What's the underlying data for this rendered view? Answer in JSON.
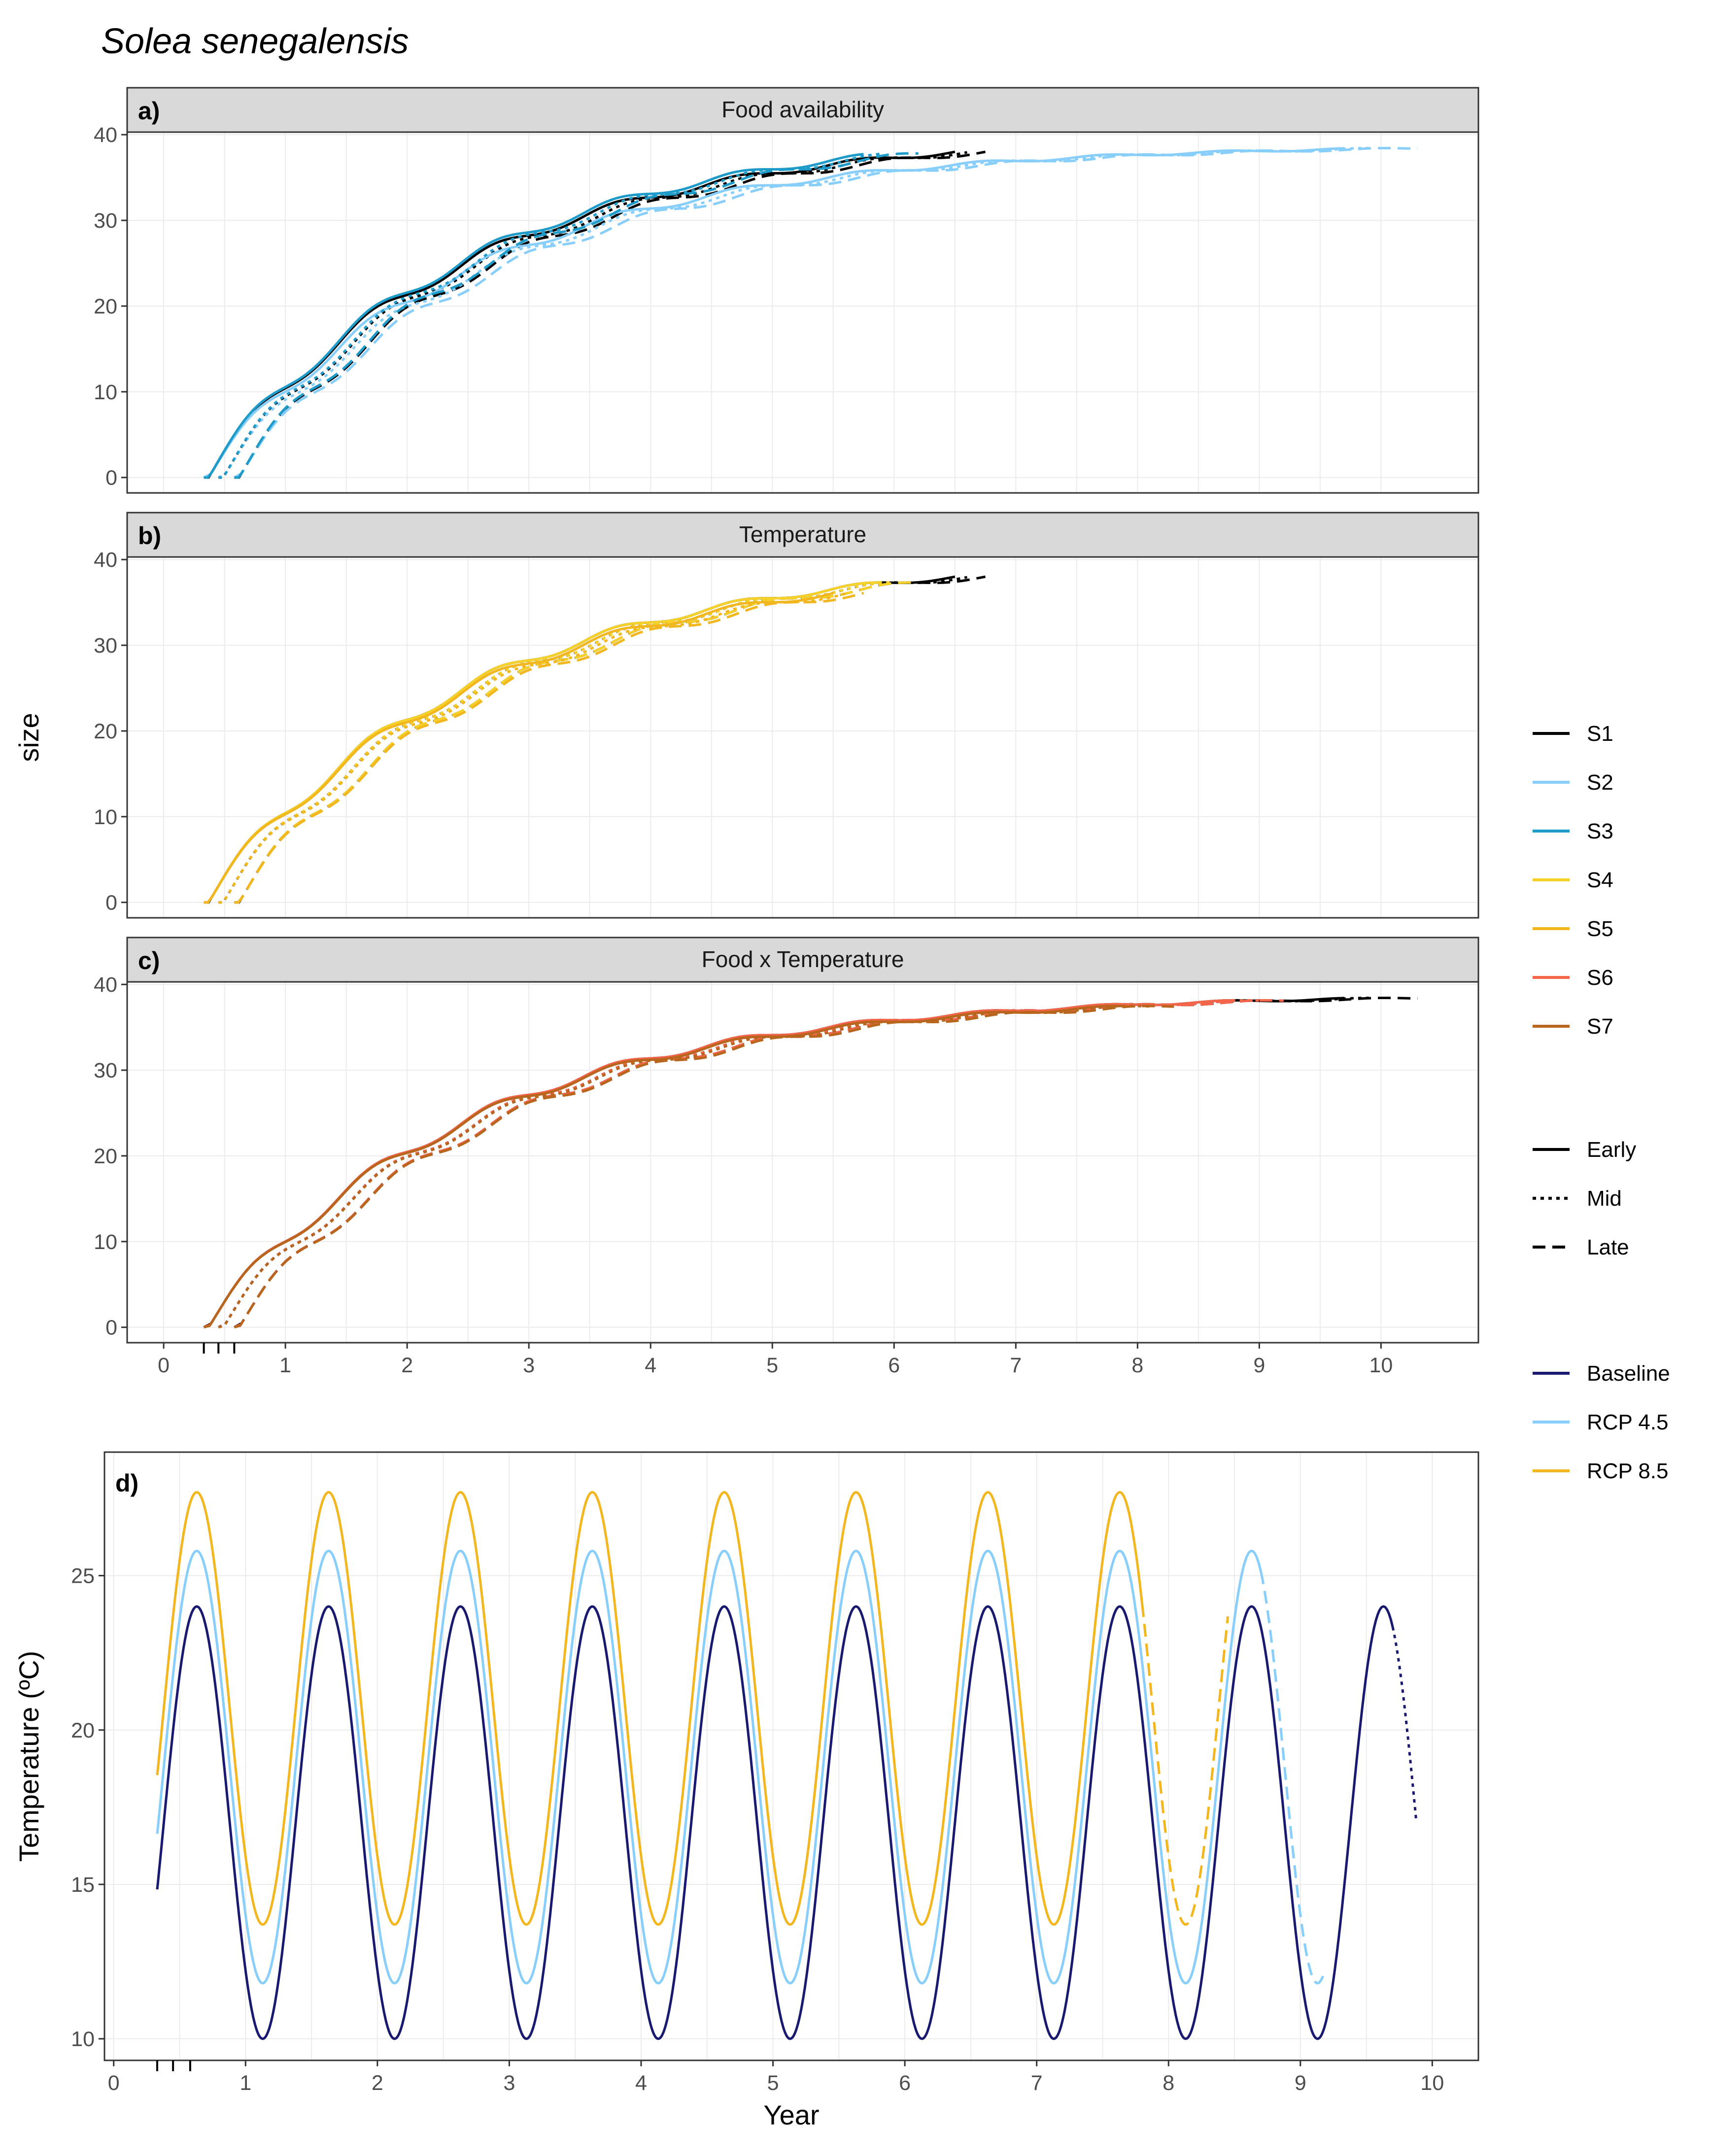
{
  "figure": {
    "title": "Solea senegalensis",
    "shared_y_label": "size",
    "x_axis_label": "Year"
  },
  "legend": {
    "scenarios": [
      {
        "label": "S1",
        "color": "#000000"
      },
      {
        "label": "S2",
        "color": "#87cefa"
      },
      {
        "label": "S3",
        "color": "#1f9bc9"
      },
      {
        "label": "S4",
        "color": "#f5d12a"
      },
      {
        "label": "S5",
        "color": "#f2b61f"
      },
      {
        "label": "S6",
        "color": "#f4654a"
      },
      {
        "label": "S7",
        "color": "#b8651e"
      }
    ],
    "periods": [
      {
        "label": "Early",
        "dash": "solid"
      },
      {
        "label": "Mid",
        "dash": "dotted"
      },
      {
        "label": "Late",
        "dash": "dashed"
      }
    ],
    "climate": [
      {
        "label": "Baseline",
        "color": "#191970"
      },
      {
        "label": "RCP 4.5",
        "color": "#87cefa"
      },
      {
        "label": "RCP 8.5",
        "color": "#f2b61f"
      }
    ]
  },
  "chart_data": [
    {
      "panel": "a)",
      "strip": "Food availability",
      "type": "line",
      "xlim": [
        -0.3,
        10.8
      ],
      "ylim": [
        -1.8,
        40.3
      ],
      "xticks": [
        0,
        1,
        2,
        3,
        4,
        5,
        6,
        7,
        8,
        9,
        10
      ],
      "yticks": [
        0,
        10,
        20,
        30,
        40
      ],
      "ylabel": "size",
      "series": [
        {
          "scenario": "S1",
          "period": "Early",
          "start": 0.33,
          "end": 6.5,
          "final": 38.0
        },
        {
          "scenario": "S1",
          "period": "Mid",
          "start": 0.45,
          "end": 6.6,
          "final": 38.0
        },
        {
          "scenario": "S1",
          "period": "Late",
          "start": 0.58,
          "end": 6.75,
          "final": 38.0
        },
        {
          "scenario": "S2",
          "period": "Early",
          "start": 0.33,
          "end": 9.7,
          "final": 36.5
        },
        {
          "scenario": "S2",
          "period": "Mid",
          "start": 0.45,
          "end": 9.9,
          "final": 36.5
        },
        {
          "scenario": "S2",
          "period": "Late",
          "start": 0.58,
          "end": 10.3,
          "final": 36.5
        },
        {
          "scenario": "S3",
          "period": "Early",
          "start": 0.33,
          "end": 5.75,
          "final": 38.5
        },
        {
          "scenario": "S3",
          "period": "Mid",
          "start": 0.45,
          "end": 5.9,
          "final": 38.5
        },
        {
          "scenario": "S3",
          "period": "Late",
          "start": 0.58,
          "end": 6.2,
          "final": 38.5
        }
      ]
    },
    {
      "panel": "b)",
      "strip": "Temperature",
      "type": "line",
      "xlim": [
        -0.3,
        10.8
      ],
      "ylim": [
        -1.8,
        40.3
      ],
      "xticks": [
        0,
        1,
        2,
        3,
        4,
        5,
        6,
        7,
        8,
        9,
        10
      ],
      "yticks": [
        0,
        10,
        20,
        30,
        40
      ],
      "series": [
        {
          "scenario": "S1",
          "period": "Early",
          "start": 0.33,
          "end": 6.5,
          "final": 38.0
        },
        {
          "scenario": "S1",
          "period": "Mid",
          "start": 0.45,
          "end": 6.6,
          "final": 38.0
        },
        {
          "scenario": "S1",
          "period": "Late",
          "start": 0.58,
          "end": 6.75,
          "final": 38.0
        },
        {
          "scenario": "S4",
          "period": "Early",
          "start": 0.33,
          "end": 5.9,
          "final": 38.0
        },
        {
          "scenario": "S4",
          "period": "Mid",
          "start": 0.45,
          "end": 6.0,
          "final": 38.0
        },
        {
          "scenario": "S4",
          "period": "Late",
          "start": 0.58,
          "end": 6.15,
          "final": 38.0
        },
        {
          "scenario": "S5",
          "period": "Early",
          "start": 0.33,
          "end": 5.5,
          "final": 37.5
        },
        {
          "scenario": "S5",
          "period": "Mid",
          "start": 0.45,
          "end": 5.6,
          "final": 37.5
        },
        {
          "scenario": "S5",
          "period": "Late",
          "start": 0.58,
          "end": 5.75,
          "final": 37.5
        }
      ]
    },
    {
      "panel": "c)",
      "strip": "Food x Temperature",
      "type": "line",
      "xlim": [
        -0.3,
        10.8
      ],
      "ylim": [
        -1.8,
        40.3
      ],
      "xticks": [
        0,
        1,
        2,
        3,
        4,
        5,
        6,
        7,
        8,
        9,
        10
      ],
      "yticks": [
        0,
        10,
        20,
        30,
        40
      ],
      "series": [
        {
          "scenario": "S1",
          "period": "Early",
          "start": 0.33,
          "end": 9.7,
          "final": 36.5
        },
        {
          "scenario": "S1",
          "period": "Mid",
          "start": 0.45,
          "end": 9.9,
          "final": 36.5
        },
        {
          "scenario": "S1",
          "period": "Late",
          "start": 0.58,
          "end": 10.3,
          "final": 36.5
        },
        {
          "scenario": "S6",
          "period": "Early",
          "start": 0.33,
          "end": 8.8,
          "final": 36.5
        },
        {
          "scenario": "S6",
          "period": "Mid",
          "start": 0.45,
          "end": 9.0,
          "final": 36.5
        },
        {
          "scenario": "S6",
          "period": "Late",
          "start": 0.58,
          "end": 9.2,
          "final": 36.5
        },
        {
          "scenario": "S7",
          "period": "Early",
          "start": 0.33,
          "end": 7.9,
          "final": 36.3
        },
        {
          "scenario": "S7",
          "period": "Mid",
          "start": 0.45,
          "end": 8.1,
          "final": 36.3
        },
        {
          "scenario": "S7",
          "period": "Late",
          "start": 0.58,
          "end": 8.3,
          "final": 36.3
        }
      ]
    },
    {
      "panel": "d)",
      "type": "line",
      "xlim": [
        -0.07,
        10.35
      ],
      "ylim": [
        9.3,
        29.0
      ],
      "xticks": [
        0,
        1,
        2,
        3,
        4,
        5,
        6,
        7,
        8,
        9,
        10
      ],
      "yticks": [
        10,
        15,
        20,
        25
      ],
      "xlabel": "Year",
      "ylabel": "Temperature (ºC)",
      "series": [
        {
          "name": "Baseline",
          "mean": 17.0,
          "amplitude": 7.0,
          "peak_at": 0.63,
          "start": 0.33,
          "solid_end": 9.7,
          "dotted_end": 9.88
        },
        {
          "name": "RCP 4.5",
          "mean": 18.8,
          "amplitude": 7.0,
          "peak_at": 0.63,
          "start": 0.33,
          "solid_end": 8.7,
          "dashed_end": 9.18
        },
        {
          "name": "RCP 8.5",
          "mean": 20.7,
          "amplitude": 7.0,
          "peak_at": 0.63,
          "start": 0.33,
          "solid_end": 7.8,
          "dashed_end": 8.45
        }
      ]
    }
  ]
}
